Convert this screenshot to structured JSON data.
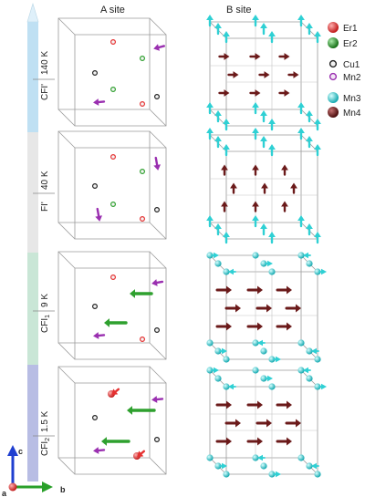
{
  "headers": {
    "a_site": "A site",
    "b_site": "B site"
  },
  "temperature_bar": {
    "segments": [
      {
        "name": "CFI'",
        "temp": "140 K",
        "phase": "CFI'",
        "color": "#bfe0f3"
      },
      {
        "name": "FI'",
        "temp": "40 K",
        "phase": "FI'",
        "color": "#e7e7e7"
      },
      {
        "name": "CFI1",
        "temp": "9 K",
        "phase": "CFI",
        "phase_sub": "1",
        "color": "#c9e6d6"
      },
      {
        "name": "CFI2",
        "temp": "1.5 K",
        "phase": "CFI",
        "phase_sub": "2",
        "color": "#b8bde4"
      }
    ]
  },
  "legend": [
    {
      "label": "Er1",
      "color": "#e53030",
      "style": "sphere"
    },
    {
      "label": "Er2",
      "color": "#2ea02e",
      "style": "sphere"
    },
    {
      "label": "Cu1",
      "color": "#222222",
      "style": "ring"
    },
    {
      "label": "Mn2",
      "color": "#9a2fb0",
      "style": "ring"
    },
    {
      "label": "Mn3",
      "color": "#2fd0d4",
      "style": "sphere"
    },
    {
      "label": "Mn4",
      "color": "#6b1a1a",
      "style": "sphere"
    }
  ],
  "axes": {
    "a": "a",
    "b": "b",
    "c": "c"
  },
  "colors": {
    "er1": "#e53030",
    "er2": "#2ea02e",
    "cu1": "#222222",
    "mn2": "#9a2fb0",
    "mn3": "#2fd0d4",
    "mn4": "#6b1a1a",
    "cube_edge": "#9a9a9a",
    "axis_c": "#1f3fd0",
    "axis_b": "#2aa02a",
    "axis_a": "#d03030"
  }
}
